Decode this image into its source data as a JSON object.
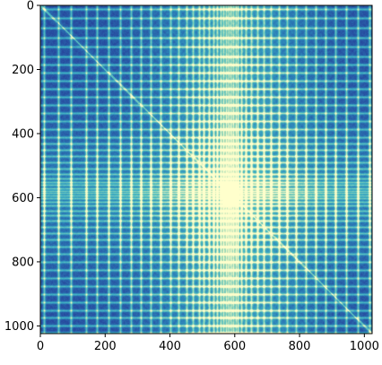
{
  "chart_data": {
    "type": "heatmap",
    "title": "",
    "xlabel": "",
    "ylabel": "",
    "n": 1024,
    "xlim": [
      0,
      1024
    ],
    "ylim": [
      1024,
      0
    ],
    "x_ticks": [
      0,
      200,
      400,
      600,
      800,
      1000
    ],
    "y_ticks": [
      0,
      200,
      400,
      600,
      800,
      1000
    ],
    "x_tick_labels": [
      "0",
      "200",
      "400",
      "600",
      "800",
      "1000"
    ],
    "y_tick_labels": [
      "0",
      "200",
      "400",
      "600",
      "800",
      "1000"
    ],
    "colormap": [
      "#253494",
      "#2c7fb8",
      "#41b6c4",
      "#a1dab4",
      "#ffffcc"
    ],
    "bright_columns": [
      10,
      55,
      95,
      140,
      175,
      210,
      245,
      280,
      310,
      340,
      370,
      400,
      425,
      450,
      470,
      490,
      505,
      520,
      535,
      545,
      555,
      565,
      572,
      578,
      584,
      590,
      596,
      602,
      610,
      620,
      635,
      650,
      670,
      690,
      710,
      735,
      760,
      790,
      820,
      850,
      880,
      910,
      945,
      980,
      1015
    ],
    "bright_rows": [
      10,
      40,
      70,
      100,
      130,
      160,
      185,
      210,
      235,
      260,
      285,
      310,
      335,
      360,
      385,
      410,
      430,
      450,
      470,
      490,
      510,
      525,
      540,
      550,
      560,
      570,
      578,
      586,
      594,
      602,
      612,
      625,
      640,
      655,
      672,
      690,
      710,
      730,
      752,
      775,
      800,
      825,
      850,
      875,
      900,
      925,
      950,
      975,
      1000,
      1020
    ],
    "diagonal": "bright",
    "diagonal_cluster_range": [
      560,
      620
    ]
  }
}
